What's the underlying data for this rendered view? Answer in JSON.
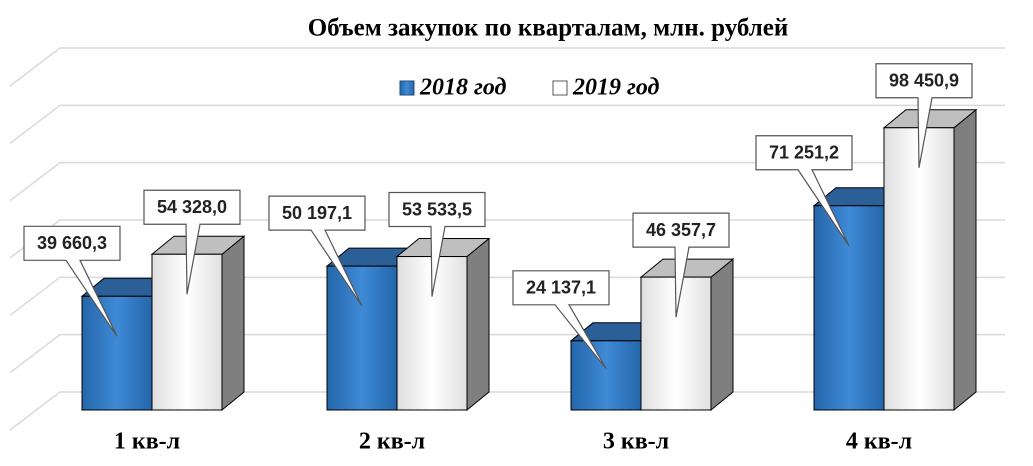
{
  "chart_data": {
    "type": "bar3d",
    "title": "Объем закупок по кварталам, млн. рублей",
    "categories": [
      "1 кв-л",
      "2 кв-л",
      "3 кв-л",
      "4 кв-л"
    ],
    "series": [
      {
        "name": "2018 год",
        "color": "#2e75c0",
        "values": [
          39660.3,
          50197.1,
          24137.1,
          71251.2
        ],
        "value_labels": [
          "39 660,3",
          "50 197,1",
          "24 137,1",
          "71 251,2"
        ]
      },
      {
        "name": "2019 год",
        "color": "#f2f2f2",
        "values": [
          54328.0,
          53533.5,
          46357.7,
          98450.9
        ],
        "value_labels": [
          "54 328,0",
          "53 533,5",
          "46 357,7",
          "98 450,9"
        ]
      }
    ],
    "ylim": [
      0,
      120000
    ],
    "yticks": [
      0,
      20000,
      40000,
      60000,
      80000,
      100000,
      120000
    ],
    "grid": true,
    "legend": "top"
  }
}
